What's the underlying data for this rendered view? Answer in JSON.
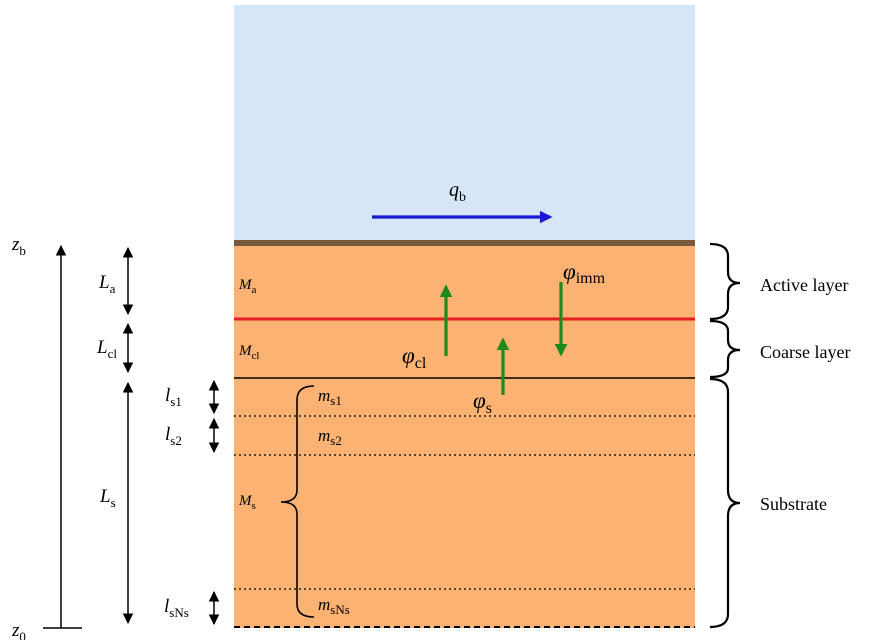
{
  "colors": {
    "water": "#d7e6f7",
    "sediment": "#fbb273",
    "bed_surface": "#7a5a3c",
    "interface": "#e41e1e",
    "flux": "#1d8a1d",
    "bedload": "#1a1ad6",
    "line": "#000000"
  },
  "labels": {
    "zb": {
      "main": "z",
      "sub": "b"
    },
    "z0": {
      "main": "z",
      "sub": "0"
    },
    "La": {
      "main": "L",
      "sub": "a"
    },
    "Lcl": {
      "main": "L",
      "sub": "cl"
    },
    "Ls": {
      "main": "L",
      "sub": "s"
    },
    "ls1": {
      "main": "l",
      "sub": "s1"
    },
    "ls2": {
      "main": "l",
      "sub": "s2"
    },
    "lsNs": {
      "main": "l",
      "sub": "sNs"
    },
    "Ma": {
      "main": "M",
      "sub": "a"
    },
    "Mcl": {
      "main": "M",
      "sub": "cl"
    },
    "Ms": {
      "main": "M",
      "sub": "s"
    },
    "ms1": {
      "main": "m",
      "sub": "s1"
    },
    "ms2": {
      "main": "m",
      "sub": "s2"
    },
    "msNs": {
      "main": "m",
      "sub": "sNs"
    },
    "qb": {
      "main": "q",
      "sub": "b"
    },
    "phi_cl": {
      "main": "φ",
      "sub": "cl"
    },
    "phi_s": {
      "main": "φ",
      "sub": "s"
    },
    "phi_imm": {
      "main": "φ",
      "sub": "imm"
    }
  },
  "regions": {
    "active": "Active layer",
    "coarse": "Coarse layer",
    "substrate": "Substrate"
  }
}
